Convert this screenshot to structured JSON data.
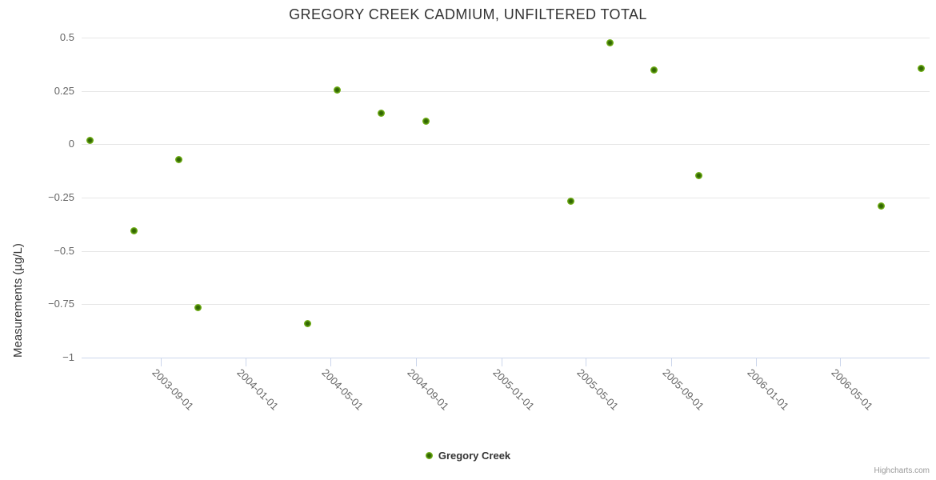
{
  "credits": "Highcharts.com",
  "colors": {
    "point_outer": "#72b117",
    "point_inner": "#326703",
    "grid": "#e6e6e6",
    "axis_line": "#ccd6eb",
    "tick_label": "#666666",
    "title": "#333333"
  },
  "chart_data": {
    "type": "scatter",
    "title": "GREGORY CREEK CADMIUM, UNFILTERED TOTAL",
    "xlabel": "",
    "ylabel": "Measurements (µg/L)",
    "grid": true,
    "legend_position": "bottom-center",
    "ylim": [
      -1,
      0.5
    ],
    "xlim": [
      "2003-05-11",
      "2006-09-06"
    ],
    "y_ticks": [
      {
        "label": "0.5",
        "value": 0.5
      },
      {
        "label": "0.25",
        "value": 0.25
      },
      {
        "label": "0",
        "value": 0
      },
      {
        "label": "−0.25",
        "value": -0.25
      },
      {
        "label": "−0.5",
        "value": -0.5
      },
      {
        "label": "−0.75",
        "value": -0.75
      },
      {
        "label": "−1",
        "value": -1
      }
    ],
    "x_ticks": [
      "2003-09-01",
      "2004-01-01",
      "2004-05-01",
      "2004-09-01",
      "2005-01-01",
      "2005-05-01",
      "2005-09-01",
      "2006-01-01",
      "2006-05-01"
    ],
    "series": [
      {
        "name": "Gregory Creek",
        "color": "#72b117",
        "points": [
          {
            "date": "2003-05-23",
            "value": 0.02
          },
          {
            "date": "2003-07-25",
            "value": -0.405
          },
          {
            "date": "2003-09-27",
            "value": -0.07
          },
          {
            "date": "2003-10-25",
            "value": -0.765
          },
          {
            "date": "2004-03-29",
            "value": -0.84
          },
          {
            "date": "2004-05-11",
            "value": 0.255
          },
          {
            "date": "2004-07-13",
            "value": 0.145
          },
          {
            "date": "2004-09-15",
            "value": 0.11
          },
          {
            "date": "2005-04-10",
            "value": -0.265
          },
          {
            "date": "2005-06-05",
            "value": 0.475
          },
          {
            "date": "2005-08-07",
            "value": 0.35
          },
          {
            "date": "2005-10-11",
            "value": -0.145
          },
          {
            "date": "2006-06-29",
            "value": -0.29
          },
          {
            "date": "2006-08-25",
            "value": 0.355
          }
        ]
      }
    ]
  }
}
